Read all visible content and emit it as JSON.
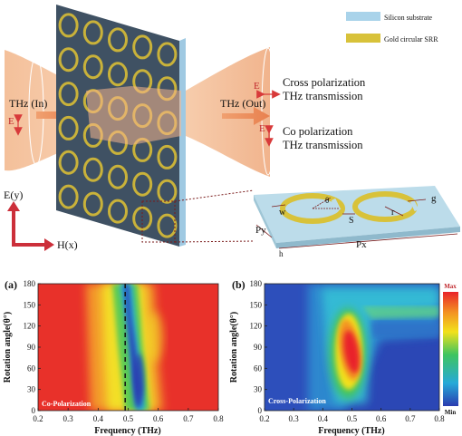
{
  "schematic": {
    "legend": [
      {
        "label": "Silicon substrate",
        "color": "#a9d3ea"
      },
      {
        "label": "Gold circular SRR",
        "color": "#d8c23a"
      }
    ],
    "thz_in": "THz (In)",
    "thz_out": "THz (Out)",
    "e_label": "E",
    "cross_line1": "Cross polarization",
    "cross_line2": "THz transmission",
    "co_line1": "Co polarization",
    "co_line2": "THz transmission",
    "axis_y": "E(y)",
    "axis_x": "H(x)",
    "unit_labels": {
      "w": "w",
      "theta": "θ",
      "S": "S",
      "r": "r",
      "g": "g",
      "Py": "Py",
      "Px": "Px",
      "h": "h"
    }
  },
  "chart_data": [
    {
      "type": "heatmap",
      "panel_label": "(a)",
      "annotation": "Co-Polarization",
      "xlabel": "Frequency (THz)",
      "ylabel": "Rotation angle(θ°)",
      "xlim": [
        0.2,
        0.8
      ],
      "ylim": [
        0,
        180
      ],
      "xticks": [
        "0.2",
        "0.3",
        "0.4",
        "0.5",
        "0.6",
        "0.7",
        "0.8"
      ],
      "yticks": [
        "0",
        "30",
        "60",
        "90",
        "120",
        "150",
        "180"
      ],
      "reference_line_x": 0.49,
      "background_level": "max",
      "features": [
        {
          "description": "low transmission band",
          "x_center_top": 0.48,
          "x_center_bottom": 0.52,
          "y_range": [
            0,
            180
          ],
          "level": "min"
        }
      ]
    },
    {
      "type": "heatmap",
      "panel_label": "(b)",
      "annotation": "Cross-Polarization",
      "xlabel": "Frequency (THz)",
      "ylabel": "Rotation angle(θ°)",
      "xlim": [
        0.2,
        0.8
      ],
      "ylim": [
        0,
        180
      ],
      "xticks": [
        "0.2",
        "0.3",
        "0.4",
        "0.5",
        "0.6",
        "0.7",
        "0.8"
      ],
      "yticks": [
        "0",
        "30",
        "60",
        "90",
        "120",
        "150",
        "180"
      ],
      "background_level": "min",
      "features": [
        {
          "description": "peak transmission",
          "x_center": 0.5,
          "y_center": 85,
          "level": "max"
        }
      ],
      "colorbar": {
        "max_label": "Max",
        "min_label": "Min"
      }
    }
  ]
}
